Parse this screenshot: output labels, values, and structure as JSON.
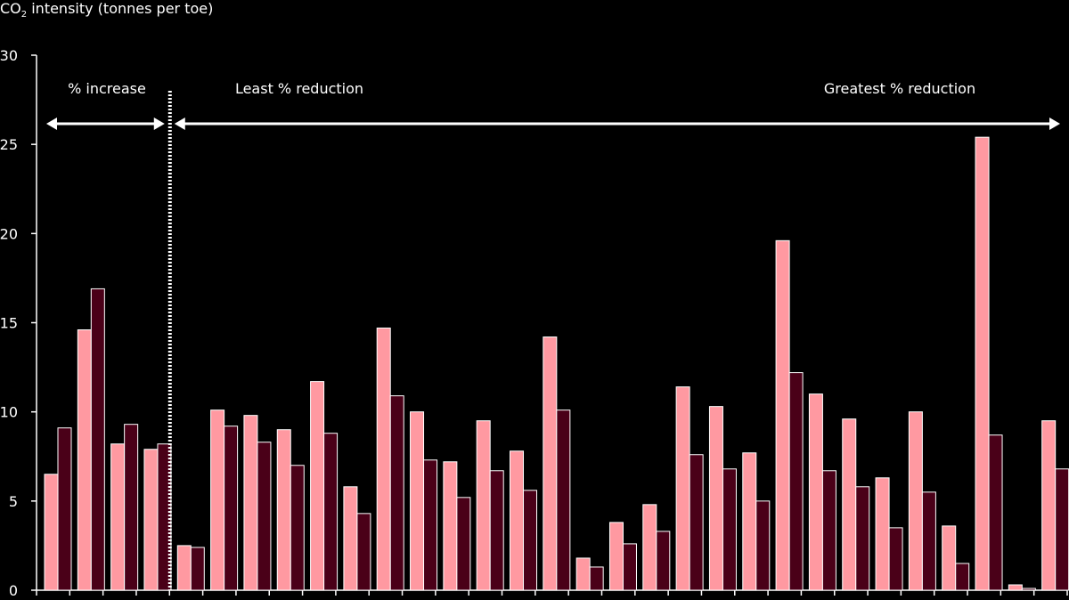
{
  "chart_data": {
    "type": "bar",
    "ylabel_prefix": "CO",
    "ylabel_sub": "2",
    "ylabel_suffix": " intensity (tonnes per toe)",
    "ylim": [
      0,
      30
    ],
    "yticks": [
      0,
      5,
      10,
      15,
      20,
      25,
      30
    ],
    "grid": false,
    "colors": {
      "series1": "#ff99a1",
      "series2": "#4a0018",
      "edge": "#ffffff",
      "axis": "#ffffff",
      "text": "#ffffff"
    },
    "annotations": [
      {
        "text": "% increase",
        "from_group": 0,
        "to_group": 3
      },
      {
        "text": "Least % reduction",
        "from_group": 4,
        "to_group": 17
      },
      {
        "text": "Greatest % reduction",
        "from_group": 18,
        "to_group": 30
      }
    ],
    "divider_after_group": 3,
    "groups": [
      [
        6.5,
        9.1
      ],
      [
        14.6,
        16.9
      ],
      [
        8.2,
        9.3
      ],
      [
        7.9,
        8.2
      ],
      [
        2.5,
        2.4
      ],
      [
        10.1,
        9.2
      ],
      [
        9.8,
        8.3
      ],
      [
        9.0,
        7.0
      ],
      [
        11.7,
        8.8
      ],
      [
        5.8,
        4.3
      ],
      [
        14.7,
        10.9
      ],
      [
        10.0,
        7.3
      ],
      [
        7.2,
        5.2
      ],
      [
        9.5,
        6.7
      ],
      [
        7.8,
        5.6
      ],
      [
        14.2,
        10.1
      ],
      [
        1.8,
        1.3
      ],
      [
        3.8,
        2.6
      ],
      [
        4.8,
        3.3
      ],
      [
        11.4,
        7.6
      ],
      [
        10.3,
        6.8
      ],
      [
        7.7,
        5.0
      ],
      [
        19.6,
        12.2
      ],
      [
        11.0,
        6.7
      ],
      [
        9.6,
        5.8
      ],
      [
        6.3,
        3.5
      ],
      [
        10.0,
        5.5
      ],
      [
        3.6,
        1.5
      ],
      [
        25.4,
        8.7
      ],
      [
        0.3,
        0.1
      ],
      [
        9.5,
        6.8
      ]
    ]
  }
}
